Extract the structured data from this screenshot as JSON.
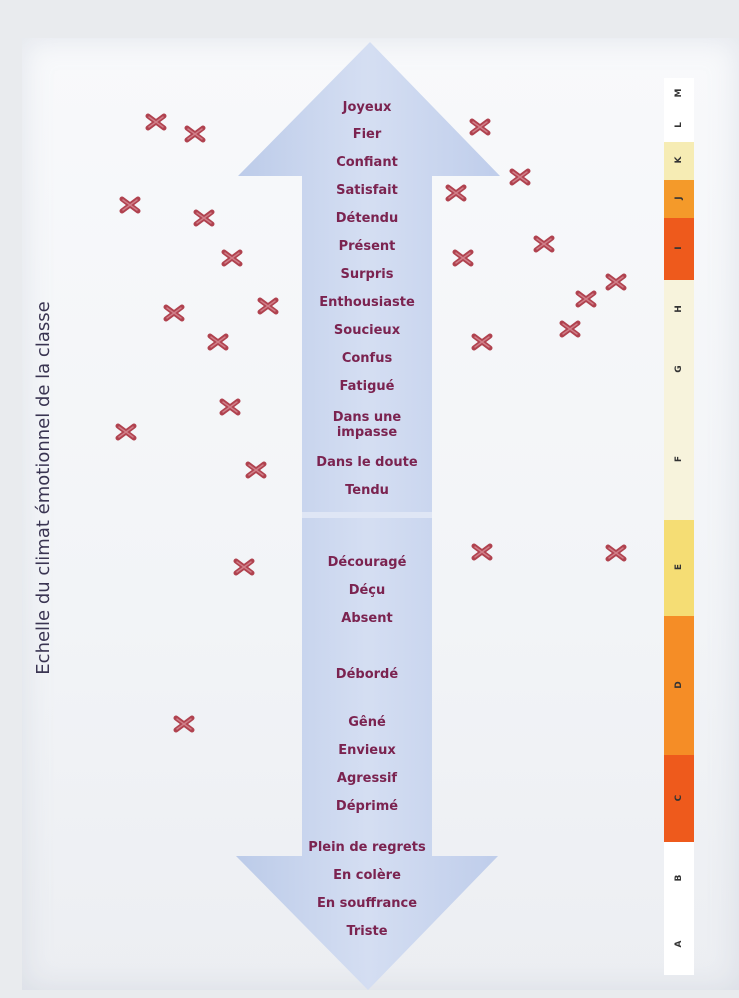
{
  "title": "Echelle du climat émotionnel de la classe",
  "emotions": [
    {
      "label": "Joyeux"
    },
    {
      "label": "Fier"
    },
    {
      "label": "Confiant"
    },
    {
      "label": "Satisfait"
    },
    {
      "label": "Détendu"
    },
    {
      "label": "Présent"
    },
    {
      "label": "Surpris"
    },
    {
      "label": "Enthousiaste"
    },
    {
      "label": "Soucieux"
    },
    {
      "label": "Confus"
    },
    {
      "label": "Fatigué"
    },
    {
      "label": "Dans une impasse"
    },
    {
      "label": "Dans le doute"
    },
    {
      "label": "Tendu"
    },
    {
      "label": "Découragé"
    },
    {
      "label": "Déçu"
    },
    {
      "label": "Absent"
    },
    {
      "label": "Débordé"
    },
    {
      "label": "Gêné"
    },
    {
      "label": "Envieux"
    },
    {
      "label": "Agressif"
    },
    {
      "label": "Déprimé"
    },
    {
      "label": "Plein de regrets"
    },
    {
      "label": "En colère"
    },
    {
      "label": "En souffrance"
    },
    {
      "label": "Triste"
    }
  ],
  "scale": [
    {
      "label": "M",
      "color": "#ffffff"
    },
    {
      "label": "L",
      "color": "#ffffff"
    },
    {
      "label": "K",
      "color": "#f6ecb4"
    },
    {
      "label": "J",
      "color": "#f49a2a"
    },
    {
      "label": "I",
      "color": "#ee5a1c"
    },
    {
      "label": "H",
      "color": "#f7f3dc"
    },
    {
      "label": "G",
      "color": "#f7f3dc"
    },
    {
      "label": "F",
      "color": "#f7f3dc"
    },
    {
      "label": "E",
      "color": "#f5dd74"
    },
    {
      "label": "D",
      "color": "#f58d26"
    },
    {
      "label": "C",
      "color": "#ee5a1c"
    },
    {
      "label": "B",
      "color": "#ffffff"
    },
    {
      "label": "A",
      "color": "#ffffff"
    }
  ],
  "colors": {
    "arrow": "#c4d3ee",
    "emotion_text": "#7b2350",
    "cross": "#b0424f",
    "title_text": "#3a3552"
  },
  "marks_icon": "cross-mark-icon"
}
